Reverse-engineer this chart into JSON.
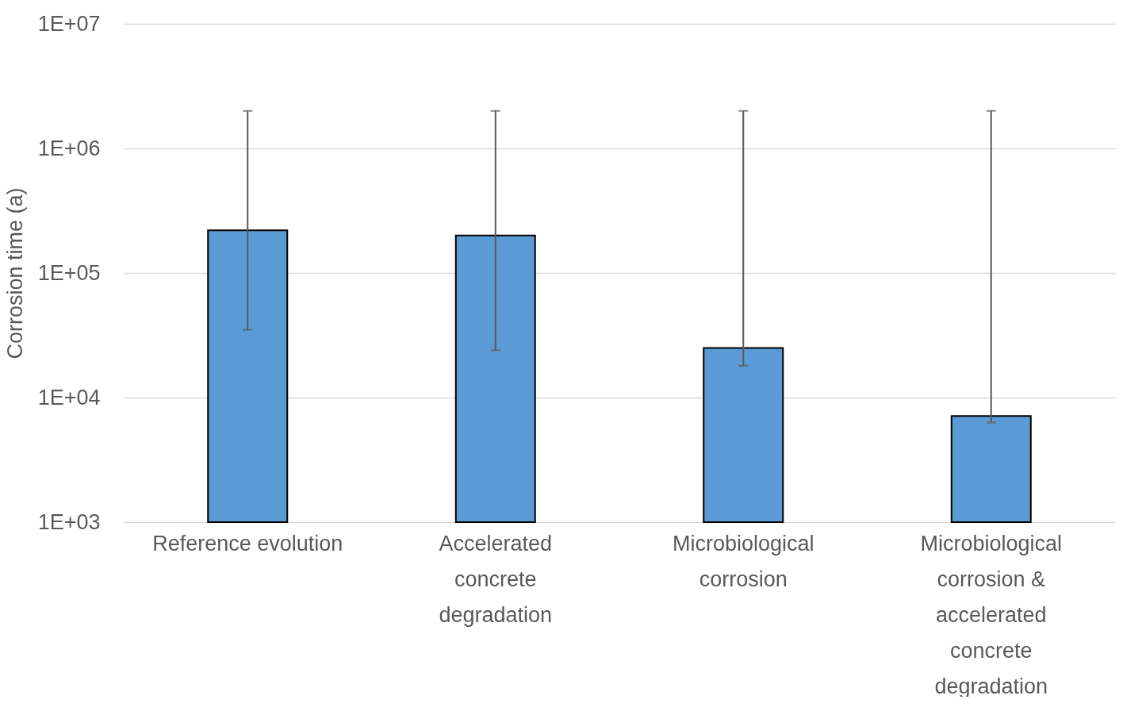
{
  "chart_data": {
    "type": "bar",
    "ylabel": "Corrosion time (a)",
    "categories": [
      "Reference evolution",
      "Accelerated concrete degradation",
      "Microbiological corrosion",
      "Microbiological corrosion & accelerated concrete degradation"
    ],
    "values": [
      220000,
      200000,
      25000,
      7100
    ],
    "errors": [
      [
        35000,
        2000000
      ],
      [
        24000,
        2000000
      ],
      [
        18000,
        2000000
      ],
      [
        6300,
        2000000
      ]
    ],
    "color": "#5b9bd5",
    "log": true,
    "ylim": [
      1000,
      10000000
    ],
    "yticks": [
      {
        "value": 1000,
        "label": "1E+03"
      },
      {
        "value": 10000,
        "label": "1E+04"
      },
      {
        "value": 100000,
        "label": "1E+05"
      },
      {
        "value": 1000000,
        "label": "1E+06"
      },
      {
        "value": 10000000,
        "label": "1E+07"
      }
    ],
    "grid": "y"
  }
}
